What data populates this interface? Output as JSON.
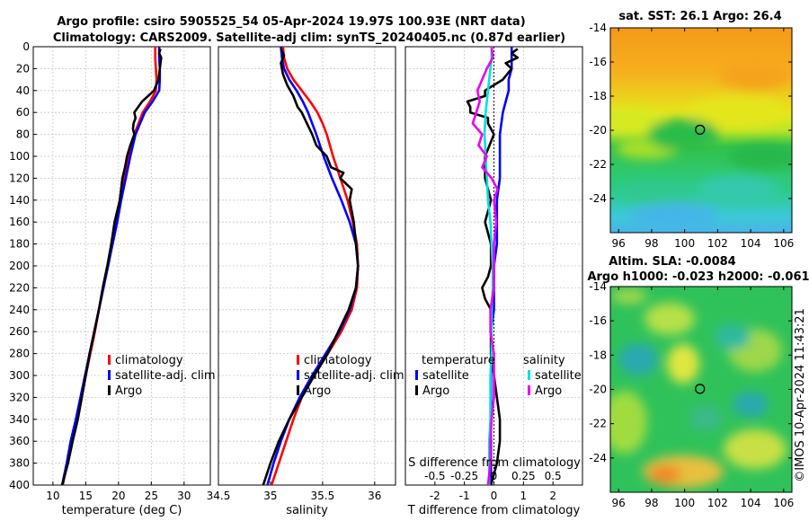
{
  "titles": {
    "line1": "Argo profile: csiro 5905525_54 05-Apr-2024 19.97S 100.93E (NRT data)",
    "line2": "Climatology: CARS2009. Satellite-adj clim: synTS_20240405.nc (0.87d earlier)",
    "sst": "sat. SST: 26.1 Argo: 26.4",
    "sla1": "Altim. SLA: -0.0084",
    "sla2": "Argo h1000: -0.023 h2000: -0.061"
  },
  "credit": "©IMOS 10-Apr-2024 11:43:21",
  "colors": {
    "climatology": "#ff0000",
    "satellite": "#0000ff",
    "argo": "#000000",
    "sal_sat": "#00e0e0",
    "sal_argo": "#ee00ee"
  },
  "chart_data": [
    {
      "type": "line",
      "title": "temperature profile",
      "xlabel": "temperature (deg C)",
      "ylabel": "",
      "xlim": [
        7,
        34
      ],
      "ylim": [
        400,
        0
      ],
      "xticks": [
        "10",
        "15",
        "20",
        "25",
        "30"
      ],
      "xtick_values": [
        10,
        15,
        20,
        25,
        30
      ],
      "yticks": [
        "0",
        "20",
        "40",
        "60",
        "80",
        "100",
        "120",
        "140",
        "160",
        "180",
        "200",
        "220",
        "240",
        "260",
        "280",
        "300",
        "320",
        "340",
        "360",
        "380",
        "400"
      ],
      "legend": [
        "climatology",
        "satellite-adj. clim",
        "Argo"
      ],
      "series": [
        {
          "name": "climatology",
          "color": "#ff0000",
          "depth": [
            0,
            10,
            20,
            30,
            40,
            50,
            60,
            80,
            100,
            120,
            140,
            160,
            180,
            200,
            220,
            240,
            260,
            280,
            300,
            320,
            340,
            360,
            380,
            400
          ],
          "values": [
            25.6,
            25.6,
            25.7,
            25.8,
            25.7,
            24.8,
            23.7,
            22.4,
            21.6,
            20.9,
            20.3,
            19.7,
            19.0,
            18.4,
            17.7,
            17.0,
            16.4,
            15.7,
            15.0,
            14.3,
            13.6,
            12.8,
            12.2,
            11.5
          ]
        },
        {
          "name": "satellite-adj. clim",
          "color": "#0000ff",
          "depth": [
            0,
            10,
            20,
            30,
            40,
            50,
            60,
            80,
            100,
            120,
            140,
            160,
            180,
            200,
            220,
            240,
            260,
            280,
            300,
            320,
            340,
            360,
            380,
            400
          ],
          "values": [
            26.2,
            26.2,
            26.3,
            26.3,
            26.2,
            25.2,
            24.0,
            22.6,
            21.8,
            21.1,
            20.4,
            19.8,
            19.1,
            18.4,
            17.7,
            17.0,
            16.3,
            15.6,
            14.9,
            14.2,
            13.5,
            12.7,
            12.1,
            11.4
          ]
        },
        {
          "name": "Argo",
          "color": "#000000",
          "depth": [
            2,
            6,
            10,
            20,
            30,
            40,
            45,
            50,
            55,
            60,
            65,
            70,
            75,
            80,
            90,
            100,
            110,
            120,
            140,
            160,
            180,
            200,
            220,
            240,
            260,
            280,
            300,
            320,
            340,
            360,
            380,
            400
          ],
          "values": [
            26.4,
            26.2,
            26.5,
            26.3,
            26.1,
            25.4,
            24.5,
            23.6,
            23.0,
            22.4,
            22.6,
            22.3,
            22.2,
            22.4,
            21.8,
            21.3,
            21.0,
            20.6,
            20.2,
            19.4,
            18.9,
            18.3,
            17.6,
            17.0,
            16.3,
            15.6,
            15.0,
            14.4,
            13.8,
            13.0,
            12.3,
            11.4
          ]
        }
      ]
    },
    {
      "type": "line",
      "title": "salinity profile",
      "xlabel": "salinity",
      "xlim": [
        34.5,
        36.2
      ],
      "ylim": [
        400,
        0
      ],
      "xticks": [
        "34.5",
        "35",
        "35.5",
        "36"
      ],
      "xtick_values": [
        34.5,
        35,
        35.5,
        36
      ],
      "legend": [
        "climatology",
        "satellite-adj. clim",
        "Argo"
      ],
      "series": [
        {
          "name": "climatology",
          "color": "#ff0000",
          "depth": [
            0,
            10,
            20,
            30,
            40,
            50,
            60,
            70,
            80,
            100,
            120,
            140,
            160,
            180,
            200,
            220,
            240,
            260,
            280,
            300,
            320,
            340,
            360,
            380,
            400
          ],
          "values": [
            35.12,
            35.13,
            35.16,
            35.22,
            35.3,
            35.38,
            35.45,
            35.5,
            35.54,
            35.6,
            35.67,
            35.74,
            35.79,
            35.83,
            35.84,
            35.83,
            35.78,
            35.68,
            35.55,
            35.42,
            35.3,
            35.22,
            35.15,
            35.08,
            35.01
          ]
        },
        {
          "name": "satellite-adj. clim",
          "color": "#0000ff",
          "depth": [
            0,
            10,
            20,
            30,
            40,
            50,
            60,
            70,
            80,
            100,
            120,
            140,
            160,
            180,
            200,
            220,
            240,
            260,
            280,
            300,
            320,
            340,
            360,
            380,
            400
          ],
          "values": [
            35.1,
            35.11,
            35.13,
            35.18,
            35.25,
            35.31,
            35.36,
            35.4,
            35.44,
            35.51,
            35.59,
            35.68,
            35.76,
            35.82,
            35.84,
            35.82,
            35.76,
            35.66,
            35.53,
            35.4,
            35.28,
            35.18,
            35.1,
            35.03,
            34.97
          ]
        },
        {
          "name": "Argo",
          "color": "#000000",
          "depth": [
            2,
            8,
            15,
            25,
            35,
            45,
            55,
            60,
            70,
            80,
            90,
            100,
            110,
            115,
            120,
            130,
            140,
            160,
            180,
            200,
            220,
            240,
            260,
            280,
            300,
            320,
            340,
            360,
            380,
            400
          ],
          "values": [
            35.1,
            35.13,
            35.1,
            35.12,
            35.16,
            35.22,
            35.26,
            35.3,
            35.35,
            35.4,
            35.44,
            35.54,
            35.58,
            35.7,
            35.67,
            35.78,
            35.76,
            35.8,
            35.82,
            35.84,
            35.82,
            35.75,
            35.65,
            35.55,
            35.42,
            35.3,
            35.18,
            35.08,
            35.0,
            34.93
          ]
        }
      ]
    },
    {
      "type": "line",
      "title": "differences from climatology",
      "xlabel": "T difference from climatology",
      "xlabel2": "S difference from climatology",
      "xlim": [
        -3,
        3
      ],
      "ylim": [
        400,
        0
      ],
      "xticks": [
        "-2",
        "-1",
        "0",
        "1",
        "2"
      ],
      "xtick_values": [
        -2,
        -1,
        0,
        1,
        2
      ],
      "s_scale": 4,
      "s_ticks": [
        "-0.5",
        "-0.25",
        "0",
        "0.25",
        "0.5"
      ],
      "s_tick_values": [
        -0.5,
        -0.25,
        0,
        0.25,
        0.5
      ],
      "legend_t": {
        "heading": "temperature",
        "items": [
          "satellite",
          "Argo"
        ]
      },
      "legend_s": {
        "heading": "salinity",
        "items": [
          "satellite",
          "Argo"
        ]
      },
      "series": [
        {
          "name": "T satellite",
          "color": "#0000ff",
          "depth": [
            0,
            10,
            20,
            30,
            40,
            50,
            60,
            80,
            100,
            120,
            140,
            160,
            180,
            200,
            220,
            240,
            260,
            280,
            300,
            320,
            340,
            360,
            380,
            400
          ],
          "values": [
            0.6,
            0.6,
            0.6,
            0.5,
            0.5,
            0.4,
            0.3,
            0.2,
            0.2,
            0.2,
            0.1,
            0.1,
            0.1,
            0.0,
            0.0,
            0.0,
            -0.1,
            -0.1,
            -0.1,
            -0.1,
            -0.1,
            -0.1,
            -0.1,
            -0.1
          ]
        },
        {
          "name": "T Argo",
          "color": "#000000",
          "depth": [
            2,
            6,
            10,
            15,
            20,
            30,
            40,
            45,
            50,
            55,
            60,
            65,
            70,
            80,
            100,
            120,
            140,
            160,
            180,
            200,
            210,
            220,
            230,
            240,
            260,
            280,
            300,
            320,
            340,
            360,
            380,
            400
          ],
          "values": [
            0.8,
            0.6,
            0.8,
            0.4,
            0.6,
            0.3,
            -0.3,
            -0.3,
            -0.9,
            -0.8,
            -0.8,
            -0.2,
            -0.2,
            0.0,
            -0.3,
            -0.3,
            -0.1,
            -0.3,
            -0.1,
            -0.1,
            -0.2,
            -0.4,
            -0.3,
            -0.1,
            -0.1,
            -0.1,
            0.0,
            0.1,
            0.2,
            0.2,
            0.1,
            -0.1
          ]
        },
        {
          "name": "S satellite",
          "color": "#00e0e0",
          "depth": [
            0,
            10,
            20,
            30,
            40,
            60,
            80,
            100,
            120,
            140,
            160,
            180,
            200,
            220,
            240,
            260,
            280,
            300,
            320,
            340,
            360,
            380,
            400
          ],
          "values": [
            -0.02,
            -0.02,
            -0.03,
            -0.04,
            -0.05,
            -0.07,
            -0.08,
            -0.07,
            -0.06,
            -0.05,
            -0.03,
            -0.02,
            -0.01,
            -0.01,
            -0.02,
            -0.02,
            -0.02,
            -0.03,
            -0.03,
            -0.03,
            -0.04,
            -0.04,
            -0.04
          ]
        },
        {
          "name": "S Argo",
          "color": "#ee00ee",
          "depth": [
            0,
            10,
            20,
            30,
            40,
            50,
            60,
            70,
            80,
            90,
            100,
            110,
            120,
            130,
            140,
            160,
            180,
            200,
            220,
            240,
            260,
            280,
            300,
            320,
            340,
            360,
            380,
            400
          ],
          "values": [
            -0.02,
            -0.01,
            -0.06,
            -0.1,
            -0.14,
            -0.12,
            -0.15,
            -0.18,
            -0.1,
            -0.13,
            -0.06,
            -0.1,
            -0.02,
            0.03,
            0.0,
            0.02,
            0.0,
            0.0,
            0.0,
            -0.03,
            -0.03,
            0.0,
            0.0,
            0.0,
            -0.02,
            -0.03,
            -0.03,
            -0.05
          ]
        }
      ]
    },
    {
      "type": "heatmap",
      "title": "sat. SST: 26.1 Argo: 26.4",
      "xlim": [
        95.5,
        106.5
      ],
      "ylim": [
        -26,
        -14
      ],
      "xticks": [
        "96",
        "98",
        "100",
        "102",
        "104",
        "106"
      ],
      "xtick_values": [
        96,
        98,
        100,
        102,
        104,
        106
      ],
      "yticks": [
        "-14",
        "-16",
        "-18",
        "-20",
        "-22",
        "-24"
      ],
      "ytick_values": [
        -14,
        -16,
        -18,
        -20,
        -22,
        -24
      ],
      "marker": {
        "lon": 100.93,
        "lat": -19.97
      }
    },
    {
      "type": "heatmap",
      "title": "Altim. SLA: -0.0084",
      "xlim": [
        95.5,
        106.5
      ],
      "ylim": [
        -26,
        -14
      ],
      "xticks": [
        "96",
        "98",
        "100",
        "102",
        "104",
        "106"
      ],
      "xtick_values": [
        96,
        98,
        100,
        102,
        104,
        106
      ],
      "yticks": [
        "-14",
        "-16",
        "-18",
        "-20",
        "-22",
        "-24"
      ],
      "ytick_values": [
        -14,
        -16,
        -18,
        -20,
        -22,
        -24
      ],
      "marker": {
        "lon": 100.93,
        "lat": -19.97
      }
    }
  ]
}
